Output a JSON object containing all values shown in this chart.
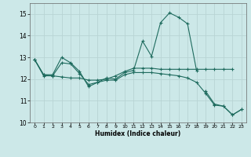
{
  "background_color": "#cce8e8",
  "grid_color": "#b8d4d4",
  "line_color": "#1e6b5e",
  "marker": "+",
  "xlabel": "Humidex (Indice chaleur)",
  "xlim": [
    -0.5,
    23.5
  ],
  "ylim": [
    10,
    15.5
  ],
  "yticks": [
    10,
    11,
    12,
    13,
    14,
    15
  ],
  "xticks": [
    0,
    1,
    2,
    3,
    4,
    5,
    6,
    7,
    8,
    9,
    10,
    11,
    12,
    13,
    14,
    15,
    16,
    17,
    18,
    19,
    20,
    21,
    22,
    23
  ],
  "lines": [
    [
      12.9,
      12.2,
      12.2,
      13.0,
      12.75,
      12.35,
      11.65,
      11.85,
      12.05,
      12.0,
      12.3,
      12.4,
      13.75,
      13.05,
      14.6,
      15.05,
      14.85,
      14.55,
      12.4,
      null,
      null,
      null,
      null,
      null
    ],
    [
      12.9,
      12.15,
      12.15,
      12.1,
      12.05,
      12.05,
      11.95,
      11.95,
      12.0,
      12.15,
      12.35,
      12.5,
      12.5,
      12.5,
      12.45,
      12.45,
      12.45,
      12.45,
      12.45,
      12.45,
      12.45,
      12.45,
      12.45,
      null
    ],
    [
      12.9,
      12.2,
      12.15,
      12.75,
      12.7,
      12.25,
      11.75,
      11.85,
      11.95,
      11.95,
      12.2,
      12.3,
      12.3,
      12.3,
      12.25,
      12.2,
      12.15,
      12.05,
      11.85,
      11.35,
      10.8,
      10.75,
      10.35,
      10.6
    ],
    [
      null,
      null,
      null,
      null,
      null,
      null,
      null,
      null,
      null,
      null,
      null,
      null,
      null,
      null,
      null,
      null,
      null,
      null,
      null,
      11.45,
      10.85,
      10.75,
      10.35,
      10.6
    ]
  ]
}
